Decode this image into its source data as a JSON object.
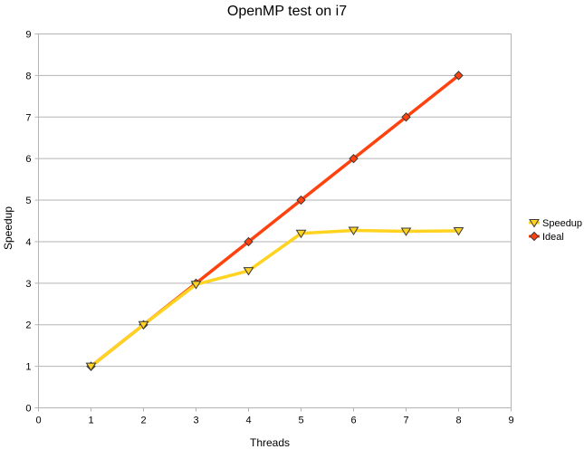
{
  "chart_data": {
    "type": "line",
    "title": "OpenMP test on i7",
    "xlabel": "Threads",
    "ylabel": "Speedup",
    "xlim": [
      0,
      9
    ],
    "ylim": [
      0,
      9
    ],
    "x_ticks": [
      0,
      1,
      2,
      3,
      4,
      5,
      6,
      7,
      8,
      9
    ],
    "y_ticks": [
      0,
      1,
      2,
      3,
      4,
      5,
      6,
      7,
      8,
      9
    ],
    "grid": "horizontal",
    "legend_position": "right",
    "series": [
      {
        "name": "Speedup",
        "x": [
          1,
          2,
          3,
          4,
          5,
          6,
          7,
          8
        ],
        "values": [
          1,
          2,
          2.97,
          3.3,
          4.2,
          4.27,
          4.25,
          4.26
        ],
        "color": "#ffd320",
        "marker": "triangle-down"
      },
      {
        "name": "Ideal",
        "x": [
          1,
          2,
          3,
          4,
          5,
          6,
          7,
          8
        ],
        "values": [
          1,
          2,
          3,
          4,
          5,
          6,
          7,
          8
        ],
        "color": "#ff420e",
        "marker": "diamond"
      }
    ]
  }
}
